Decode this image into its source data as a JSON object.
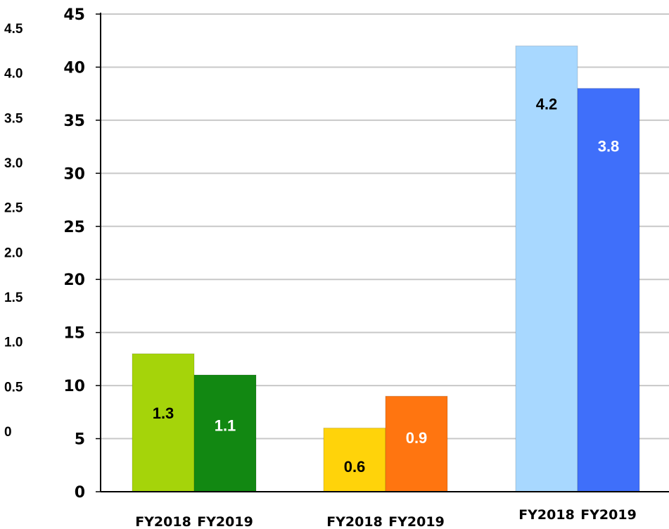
{
  "chart_data": {
    "type": "bar",
    "groups": [
      {
        "bars": [
          {
            "label": "FY2018",
            "value": 1.3,
            "display": "1.3",
            "color": "#a5d40a",
            "text_color": "#000000"
          },
          {
            "label": "FY2019",
            "value": 1.1,
            "display": "1.1",
            "color": "#128812",
            "text_color": "#ffffff"
          }
        ]
      },
      {
        "bars": [
          {
            "label": "FY2018",
            "value": 0.6,
            "display": "0.6",
            "color": "#ffd30a",
            "text_color": "#000000"
          },
          {
            "label": "FY2019",
            "value": 0.9,
            "display": "0.9",
            "color": "#ff7510",
            "text_color": "#ffffff"
          }
        ]
      },
      {
        "bars": [
          {
            "label": "FY2018",
            "value": 4.2,
            "display": "4.2",
            "color": "#a8d8ff",
            "text_color": "#000000"
          },
          {
            "label": "FY2019",
            "value": 3.8,
            "display": "3.8",
            "color": "#3f6ffa",
            "text_color": "#ffffff"
          }
        ]
      }
    ],
    "y_axis_outer": {
      "ticks": [
        "0",
        "0.5",
        "1.0",
        "1.5",
        "2.0",
        "2.5",
        "3.0",
        "3.5",
        "4.0",
        "4.5"
      ]
    },
    "y_axis_inner": {
      "ylim": [
        0,
        45
      ],
      "ticks": [
        "0",
        "5",
        "10",
        "15",
        "20",
        "25",
        "30",
        "35",
        "40",
        "45"
      ]
    },
    "grid": true,
    "title": "",
    "xlabel": "",
    "ylabel": ""
  }
}
